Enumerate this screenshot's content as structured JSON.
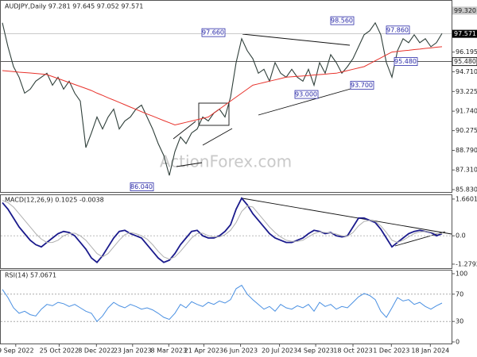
{
  "chart_data": [
    {
      "type": "line",
      "title": "AUDJPY,Daily  97.281 97.645 97.052 97.571",
      "watermark": "ActionForex.com",
      "xlim": [
        0,
        79
      ],
      "xticks": [
        {
          "value": 2.4,
          "label": "9 Sep 2022"
        },
        {
          "value": 10.2,
          "label": "25 Oct 2022"
        },
        {
          "value": 16.9,
          "label": "8 Dec 2022"
        },
        {
          "value": 23.4,
          "label": "23 Jan 2023"
        },
        {
          "value": 29.9,
          "label": "8 Mar 2023"
        },
        {
          "value": 36.2,
          "label": "21 Apr 2023"
        },
        {
          "value": 42.8,
          "label": "6 Jun 2023"
        },
        {
          "value": 49.8,
          "label": "20 Jul 2023"
        },
        {
          "value": 56.3,
          "label": "4 Sep 2023"
        },
        {
          "value": 63,
          "label": "18 Oct 2023"
        },
        {
          "value": 69.9,
          "label": "1 Dec 2023"
        },
        {
          "value": 76.9,
          "label": "18 Jan 2024"
        }
      ],
      "ylim": [
        85.65,
        100.0
      ],
      "yticks": [
        {
          "value": 96.195,
          "label": "96.195"
        },
        {
          "value": 94.71,
          "label": "94.710"
        },
        {
          "value": 93.225,
          "label": "93.225"
        },
        {
          "value": 91.74,
          "label": "91.740"
        },
        {
          "value": 90.275,
          "label": "90.275"
        },
        {
          "value": 88.79,
          "label": "88.790"
        },
        {
          "value": 87.31,
          "label": "87.310"
        },
        {
          "value": 85.83,
          "label": "85.830"
        }
      ],
      "levels": [
        {
          "value": 99.32,
          "label": "99.320"
        },
        {
          "value": 97.571,
          "label": "97.571"
        },
        {
          "value": 95.48,
          "label": "95.480"
        }
      ],
      "annotations": [
        {
          "value": 97.66,
          "label": "97.660"
        },
        {
          "value": 98.56,
          "label": "98.560"
        },
        {
          "value": 97.86,
          "label": "97.860"
        },
        {
          "value": 95.48,
          "label": "95.480"
        },
        {
          "value": 93.0,
          "label": "93.000"
        },
        {
          "value": 93.7,
          "label": "93.700"
        },
        {
          "value": 86.04,
          "label": "86.040"
        }
      ],
      "series": [
        {
          "color": "#2f3f3a",
          "values": [
            98.4,
            96.6,
            95.1,
            94.3,
            93.1,
            93.4,
            94.0,
            94.3,
            94.6,
            93.7,
            94.3,
            93.4,
            94.0,
            93.1,
            92.5,
            89.0,
            90.1,
            91.3,
            90.4,
            91.3,
            91.9,
            90.4,
            91.0,
            91.3,
            91.9,
            92.2,
            91.3,
            90.4,
            89.3,
            88.4,
            86.9,
            88.7,
            89.8,
            89.3,
            90.1,
            90.4,
            91.3,
            91.0,
            91.6,
            91.9,
            91.3,
            92.8,
            95.4,
            97.2,
            96.3,
            95.7,
            94.6,
            94.9,
            94.0,
            95.4,
            94.6,
            94.3,
            94.9,
            94.3,
            94.0,
            94.9,
            93.7,
            95.4,
            94.6,
            96.0,
            95.4,
            94.6,
            95.1,
            95.7,
            96.6,
            97.5,
            97.8,
            98.4,
            97.5,
            95.4,
            94.3,
            96.3,
            97.2,
            96.9,
            97.5,
            96.9,
            97.2,
            96.6,
            96.9,
            97.6
          ]
        },
        {
          "color": "#e8322b",
          "values": [
            94.8,
            94.76,
            94.72,
            94.68,
            94.65,
            94.62,
            94.58,
            94.54,
            94.5,
            94.35,
            94.2,
            94.05,
            93.9,
            93.75,
            93.6,
            93.45,
            93.3,
            93.1,
            92.93,
            92.75,
            92.58,
            92.4,
            92.23,
            92.05,
            91.88,
            91.7,
            91.53,
            91.37,
            91.2,
            91.03,
            90.87,
            90.7,
            90.8,
            90.9,
            91.0,
            91.1,
            91.2,
            91.3,
            91.6,
            91.9,
            92.2,
            92.5,
            92.8,
            93.1,
            93.4,
            93.7,
            93.8,
            93.9,
            94.0,
            94.1,
            94.2,
            94.3,
            94.33,
            94.37,
            94.4,
            94.43,
            94.47,
            94.5,
            94.53,
            94.57,
            94.6,
            94.7,
            94.8,
            94.9,
            95.0,
            95.1,
            95.32,
            95.54,
            95.76,
            95.98,
            96.2,
            96.24,
            96.29,
            96.33,
            96.38,
            96.42,
            96.47,
            96.51,
            96.56,
            96.6
          ]
        }
      ]
    },
    {
      "type": "line",
      "title": "MACD(12,26,9) 0.1025 -0.0038",
      "ylim": [
        -1.46,
        1.8
      ],
      "yticks": [
        1.6601,
        {
          "value": 0,
          "label": "0.0"
        },
        -1.2792
      ],
      "series": [
        {
          "color": "#1a1a8c",
          "values": [
            1.5,
            1.2,
            0.8,
            0.4,
            0.1,
            -0.2,
            -0.4,
            -0.5,
            -0.3,
            -0.1,
            0.1,
            0.2,
            0.15,
            0.0,
            -0.3,
            -0.6,
            -1.0,
            -1.2,
            -0.9,
            -0.5,
            -0.1,
            0.2,
            0.25,
            0.1,
            0.0,
            -0.1,
            -0.4,
            -0.7,
            -1.0,
            -1.2,
            -1.1,
            -0.8,
            -0.4,
            -0.1,
            0.2,
            0.25,
            0.0,
            -0.1,
            -0.1,
            0.0,
            0.2,
            0.5,
            1.2,
            1.7,
            1.4,
            1.0,
            0.7,
            0.4,
            0.1,
            -0.1,
            -0.2,
            -0.3,
            -0.3,
            -0.2,
            -0.1,
            0.1,
            0.25,
            0.2,
            0.1,
            0.15,
            0.0,
            -0.05,
            0.0,
            0.4,
            0.8,
            0.8,
            0.7,
            0.6,
            0.3,
            -0.1,
            -0.5,
            -0.3,
            -0.1,
            0.1,
            0.2,
            0.25,
            0.2,
            0.15,
            0.0,
            0.1
          ]
        },
        {
          "color": "#b0b0b0",
          "values": [
            1.6,
            1.5,
            1.3,
            1.0,
            0.7,
            0.4,
            0.1,
            -0.15,
            -0.3,
            -0.3,
            -0.2,
            0.0,
            0.1,
            0.12,
            0.0,
            -0.2,
            -0.5,
            -0.8,
            -0.95,
            -0.8,
            -0.5,
            -0.2,
            0.05,
            0.15,
            0.1,
            0.0,
            -0.15,
            -0.4,
            -0.7,
            -0.95,
            -1.05,
            -0.95,
            -0.7,
            -0.4,
            -0.1,
            0.1,
            0.12,
            0.0,
            -0.05,
            -0.05,
            0.05,
            0.25,
            0.6,
            1.1,
            1.35,
            1.3,
            1.0,
            0.7,
            0.4,
            0.15,
            -0.05,
            -0.2,
            -0.25,
            -0.25,
            -0.2,
            -0.05,
            0.1,
            0.18,
            0.15,
            0.13,
            0.08,
            0.0,
            -0.02,
            0.15,
            0.45,
            0.65,
            0.7,
            0.65,
            0.45,
            0.15,
            -0.2,
            -0.3,
            -0.2,
            -0.05,
            0.1,
            0.18,
            0.2,
            0.17,
            0.1,
            0.1
          ]
        }
      ]
    },
    {
      "type": "line",
      "title": "RSI(14) 57.0671",
      "ylim": [
        0,
        100
      ],
      "yticks": [
        100,
        70,
        30,
        0
      ],
      "series": [
        {
          "color": "#4a90e2",
          "values": [
            77,
            65,
            50,
            42,
            45,
            40,
            38,
            48,
            55,
            53,
            58,
            56,
            52,
            55,
            50,
            45,
            42,
            30,
            38,
            50,
            58,
            53,
            50,
            55,
            52,
            48,
            50,
            47,
            42,
            36,
            33,
            42,
            55,
            50,
            59,
            55,
            52,
            58,
            55,
            60,
            57,
            62,
            78,
            83,
            70,
            62,
            55,
            48,
            52,
            45,
            55,
            50,
            48,
            53,
            50,
            55,
            45,
            58,
            52,
            55,
            48,
            52,
            50,
            58,
            66,
            71,
            68,
            62,
            45,
            36,
            50,
            65,
            60,
            62,
            55,
            58,
            52,
            48,
            53,
            57
          ]
        }
      ]
    }
  ]
}
